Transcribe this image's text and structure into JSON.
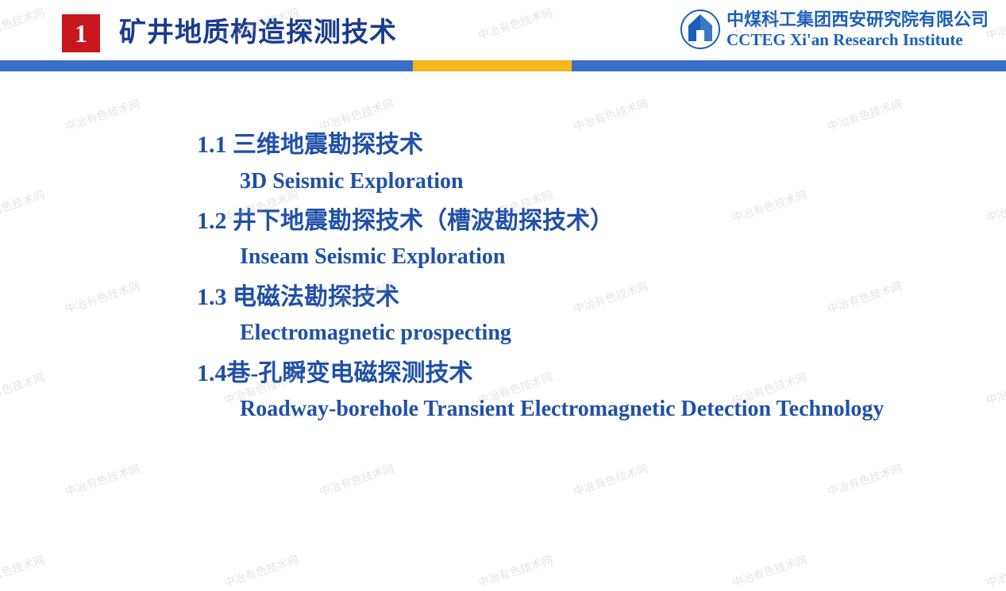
{
  "header": {
    "section_number": "1",
    "section_number_bg": "#c8161d",
    "section_number_color": "#ffffff",
    "title": "矿井地质构造探测技术",
    "title_color": "#1a3b8e"
  },
  "org": {
    "name_cn": "中煤科工集团西安研究院有限公司",
    "name_en": "CCTEG Xi'an Research Institute",
    "text_color": "#1a5fb8",
    "logo_outer_color": "#1a5fb8",
    "logo_inner_color": "#ffffff"
  },
  "divider": {
    "seg1_color": "#3a6fc7",
    "seg1_width": 520,
    "seg2_color": "#f4b71e",
    "seg2_width": 200,
    "seg3_color": "#3a6fc7"
  },
  "content": {
    "text_color": "#2050a8",
    "items": [
      {
        "cn": "1.1 三维地震勘探技术",
        "en": "3D Seismic Exploration"
      },
      {
        "cn": "1.2 井下地震勘探技术（槽波勘探技术）",
        "en": "Inseam Seismic Exploration"
      },
      {
        "cn": "1.3 电磁法勘探技术",
        "en": "Electromagnetic prospecting"
      },
      {
        "cn": "1.4巷-孔瞬变电磁探测技术",
        "en": "Roadway-borehole Transient Electromagnetic Detection Technology"
      }
    ]
  },
  "watermark": {
    "text": "中冶有色技术网"
  }
}
